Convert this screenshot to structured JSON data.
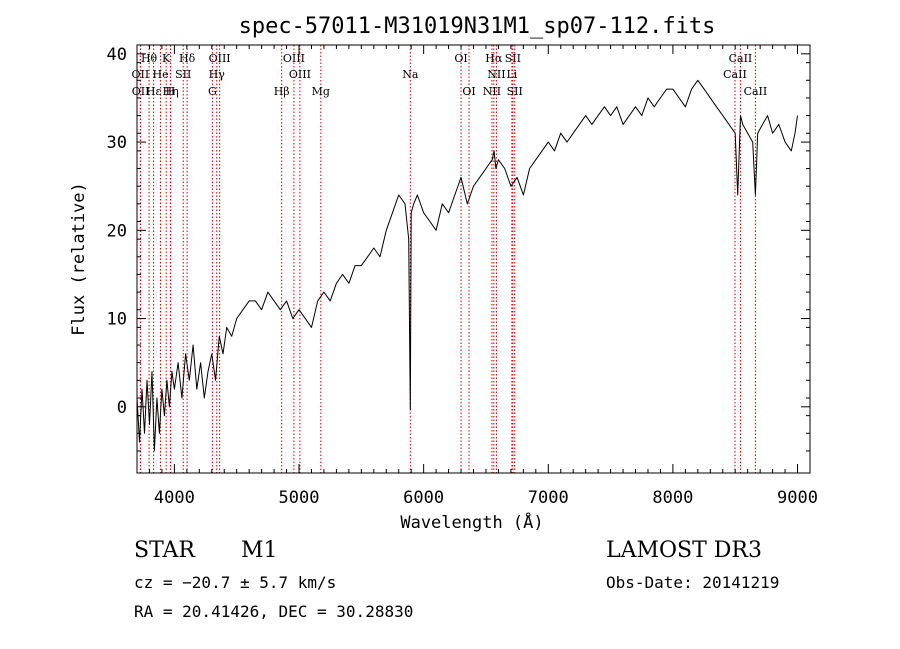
{
  "chart_data": {
    "type": "line",
    "title": "spec-57011-M31019N31M1_sp07-112.fits",
    "xlabel": "Wavelength (Å)",
    "ylabel": "Flux (relative)",
    "xlim": [
      3700,
      9100
    ],
    "ylim": [
      -7.5,
      41
    ],
    "x_ticks": [
      4000,
      5000,
      6000,
      7000,
      8000,
      9000
    ],
    "x_tick_labels": [
      "4000",
      "5000",
      "6000",
      "7000",
      "8000",
      "9000"
    ],
    "y_ticks": [
      0,
      10,
      20,
      30,
      40
    ],
    "y_tick_labels": [
      "0",
      "10",
      "20",
      "30",
      "40"
    ],
    "grid": false,
    "series": [
      {
        "name": "flux",
        "x": [
          3700,
          3720,
          3740,
          3760,
          3780,
          3800,
          3820,
          3840,
          3860,
          3880,
          3900,
          3920,
          3940,
          3960,
          3980,
          4000,
          4030,
          4060,
          4090,
          4120,
          4150,
          4180,
          4210,
          4240,
          4270,
          4300,
          4330,
          4360,
          4390,
          4420,
          4460,
          4500,
          4550,
          4600,
          4650,
          4700,
          4750,
          4800,
          4850,
          4900,
          4950,
          5000,
          5050,
          5100,
          5150,
          5200,
          5250,
          5300,
          5350,
          5400,
          5450,
          5500,
          5550,
          5600,
          5650,
          5700,
          5750,
          5800,
          5850,
          5880,
          5893,
          5900,
          5920,
          5950,
          6000,
          6050,
          6100,
          6150,
          6200,
          6250,
          6300,
          6350,
          6400,
          6450,
          6500,
          6550,
          6565,
          6580,
          6600,
          6650,
          6700,
          6750,
          6800,
          6850,
          6900,
          6950,
          7000,
          7050,
          7100,
          7150,
          7200,
          7250,
          7300,
          7350,
          7400,
          7450,
          7500,
          7550,
          7600,
          7650,
          7700,
          7750,
          7800,
          7850,
          7900,
          7950,
          8000,
          8050,
          8100,
          8150,
          8200,
          8250,
          8300,
          8350,
          8400,
          8450,
          8500,
          8520,
          8542,
          8560,
          8600,
          8640,
          8662,
          8680,
          8720,
          8760,
          8800,
          8850,
          8900,
          8950,
          8980,
          9000
        ],
        "y": [
          1,
          -4,
          2,
          -3,
          3,
          -2,
          4,
          -5,
          1,
          -3,
          2,
          -1,
          3,
          0,
          4,
          2,
          5,
          1,
          6,
          3,
          7,
          2,
          5,
          1,
          4,
          6,
          3,
          8,
          6,
          9,
          8,
          10,
          11,
          12,
          12,
          11,
          13,
          12,
          11,
          12,
          10,
          11,
          10,
          9,
          12,
          13,
          12,
          14,
          15,
          14,
          16,
          16,
          17,
          18,
          17,
          20,
          22,
          24,
          23,
          19,
          -0.3,
          22,
          23,
          24,
          22,
          21,
          20,
          23,
          22,
          24,
          26,
          23,
          25,
          26,
          27,
          28,
          29,
          27,
          28,
          27,
          25,
          26,
          24,
          27,
          28,
          29,
          30,
          29,
          31,
          30,
          31,
          32,
          33,
          32,
          33,
          34,
          33,
          34,
          32,
          33,
          34,
          33,
          35,
          34,
          35,
          36,
          36,
          35,
          34,
          36,
          37,
          36,
          35,
          34,
          33,
          32,
          31,
          24,
          33,
          32,
          31,
          30,
          24,
          31,
          32,
          33,
          31,
          32,
          30,
          29,
          31,
          33
        ]
      }
    ],
    "line_markers": [
      {
        "label": "Hθ",
        "x": 3797,
        "row": 1
      },
      {
        "label": "K",
        "x": 3934,
        "row": 1
      },
      {
        "label": "Hδ",
        "x": 4102,
        "row": 1
      },
      {
        "label": "OIII",
        "x": 4363,
        "row": 1
      },
      {
        "label": "OIII",
        "x": 4959,
        "row": 1
      },
      {
        "label": "OI",
        "x": 6300,
        "row": 1
      },
      {
        "label": "Hα",
        "x": 6563,
        "row": 1
      },
      {
        "label": "SII",
        "x": 6716,
        "row": 1
      },
      {
        "label": "CaII",
        "x": 8542,
        "row": 1
      },
      {
        "label": "OII",
        "x": 3727,
        "row": 2
      },
      {
        "label": "He",
        "x": 3889,
        "row": 2
      },
      {
        "label": "SII",
        "x": 4071,
        "row": 2
      },
      {
        "label": "Hγ",
        "x": 4340,
        "row": 2
      },
      {
        "label": "OIII",
        "x": 5007,
        "row": 2
      },
      {
        "label": "Na",
        "x": 5893,
        "row": 2
      },
      {
        "label": "NII",
        "x": 6584,
        "row": 2
      },
      {
        "label": "Li",
        "x": 6708,
        "row": 2
      },
      {
        "label": "CaII",
        "x": 8498,
        "row": 2
      },
      {
        "label": "OII",
        "x": 3729,
        "row": 3
      },
      {
        "label": "Hε",
        "x": 3833,
        "row": 3
      },
      {
        "label": "Hη",
        "x": 3970,
        "row": 3
      },
      {
        "label": "H",
        "x": 3968,
        "row": 3
      },
      {
        "label": "G",
        "x": 4305,
        "row": 3
      },
      {
        "label": "Hβ",
        "x": 4861,
        "row": 3
      },
      {
        "label": "Mg",
        "x": 5175,
        "row": 3
      },
      {
        "label": "OI",
        "x": 6364,
        "row": 3
      },
      {
        "label": "NII",
        "x": 6548,
        "row": 3
      },
      {
        "label": "SII",
        "x": 6731,
        "row": 3
      },
      {
        "label": "CaII",
        "x": 8662,
        "row": 3
      }
    ],
    "marker_color": "#cc0000"
  },
  "info": {
    "object_class": "STAR",
    "subclass": "M1",
    "survey": "LAMOST DR3",
    "velocity": "cz = −20.7 ± 5.7 km/s",
    "obs_date": "Obs-Date: 20141219",
    "coords": "RA =  20.41426, DEC =  30.28830"
  }
}
